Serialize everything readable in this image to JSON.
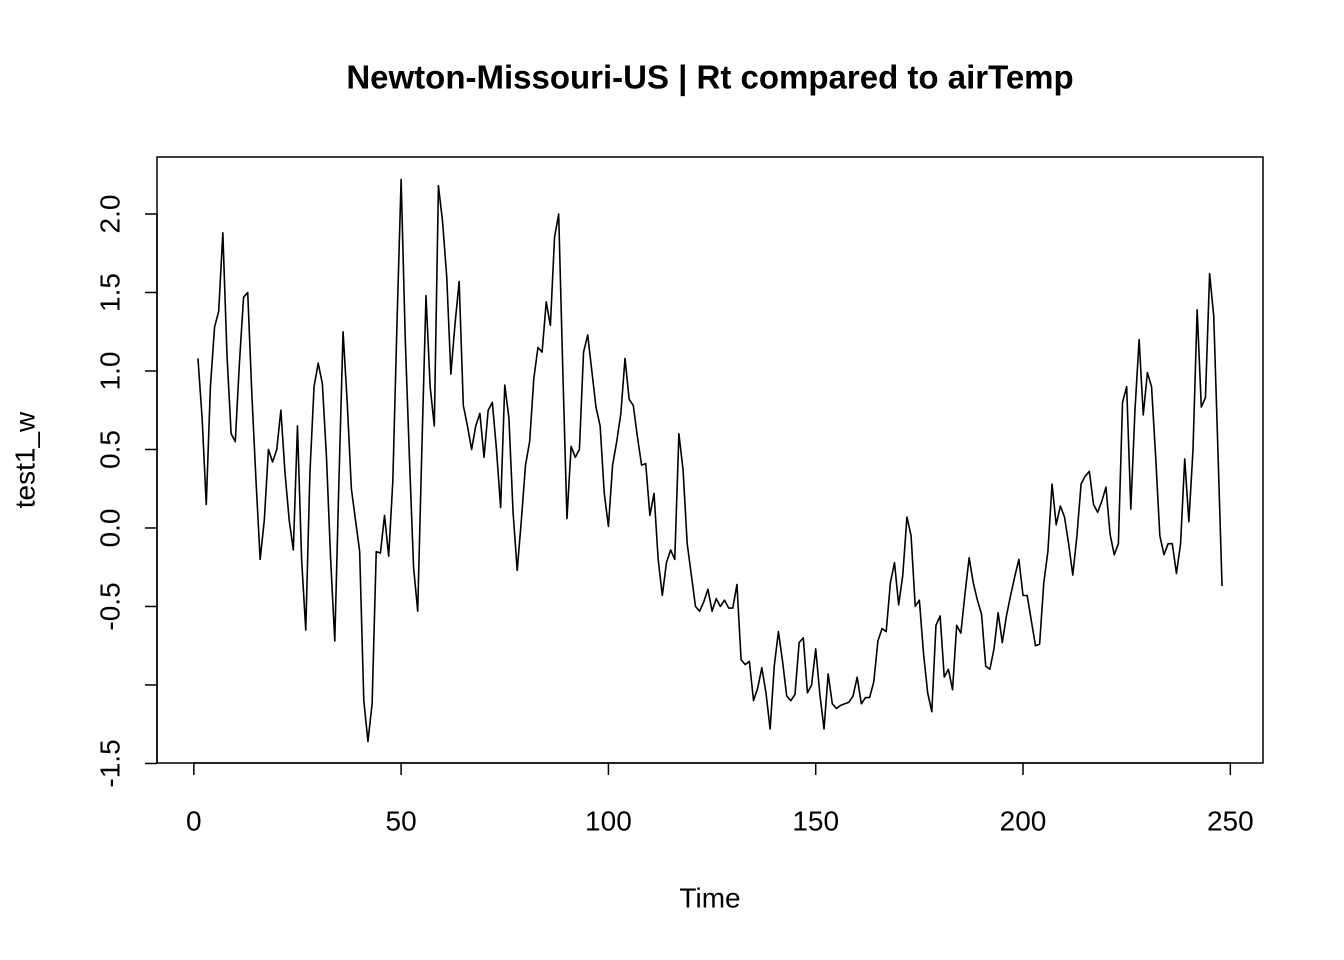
{
  "chart_data": {
    "type": "line",
    "title": "Newton-Missouri-US | Rt compared to airTemp",
    "x_label": "Time",
    "y_label": "test1_w",
    "xlim": [
      -8.88,
      257.88
    ],
    "ylim": [
      -1.497,
      2.363
    ],
    "xticks": [
      0,
      50,
      100,
      150,
      200,
      250
    ],
    "yticks": [
      {
        "value": -1.5,
        "label": "-1.5"
      },
      {
        "value": -1,
        "label": null
      },
      {
        "value": -0.5,
        "label": "-0.5"
      },
      {
        "value": 0,
        "label": "0.0"
      },
      {
        "value": 0.5,
        "label": "0.5"
      },
      {
        "value": 1,
        "label": "1.0"
      },
      {
        "value": 1.5,
        "label": "1.5"
      },
      {
        "value": 2,
        "label": "2.0"
      }
    ],
    "grid": false,
    "series": [
      {
        "color": "#000000",
        "x": [
          1,
          2,
          3,
          4,
          5,
          6,
          7,
          8,
          9,
          10,
          11,
          12,
          13,
          14,
          15,
          16,
          17,
          18,
          19,
          20,
          21,
          22,
          23,
          24,
          25,
          26,
          27,
          28,
          29,
          30,
          31,
          32,
          33,
          34,
          35,
          36,
          37,
          38,
          39,
          40,
          41,
          42,
          43,
          44,
          45,
          46,
          47,
          48,
          49,
          50,
          51,
          52,
          53,
          54,
          55,
          56,
          57,
          58,
          59,
          60,
          61,
          62,
          63,
          64,
          65,
          66,
          67,
          68,
          69,
          70,
          71,
          72,
          73,
          74,
          75,
          76,
          77,
          78,
          79,
          80,
          81,
          82,
          83,
          84,
          85,
          86,
          87,
          88,
          89,
          90,
          91,
          92,
          93,
          94,
          95,
          96,
          97,
          98,
          99,
          100,
          101,
          102,
          103,
          104,
          105,
          106,
          107,
          108,
          109,
          110,
          111,
          112,
          113,
          114,
          115,
          116,
          117,
          118,
          119,
          120,
          121,
          122,
          123,
          124,
          125,
          126,
          127,
          128,
          129,
          130,
          131,
          132,
          133,
          134,
          135,
          136,
          137,
          138,
          139,
          140,
          141,
          142,
          143,
          144,
          145,
          146,
          147,
          148,
          149,
          150,
          151,
          152,
          153,
          154,
          155,
          156,
          157,
          158,
          159,
          160,
          161,
          162,
          163,
          164,
          165,
          166,
          167,
          168,
          169,
          170,
          171,
          172,
          173,
          174,
          175,
          176,
          177,
          178,
          179,
          180,
          181,
          182,
          183,
          184,
          185,
          186,
          187,
          188,
          189,
          190,
          191,
          192,
          193,
          194,
          195,
          196,
          197,
          198,
          199,
          200,
          201,
          202,
          203,
          204,
          205,
          206,
          207,
          208,
          209,
          210,
          211,
          212,
          213,
          214,
          215,
          216,
          217,
          218,
          219,
          220,
          221,
          222,
          223,
          224,
          225,
          226,
          227,
          228,
          229,
          230,
          231,
          232,
          233,
          234,
          235,
          236,
          237,
          238,
          239,
          240,
          241,
          242,
          243,
          244,
          245,
          246,
          247,
          248
        ],
        "values": [
          1.08,
          0.7,
          0.15,
          0.9,
          1.28,
          1.38,
          1.88,
          1.1,
          0.6,
          0.55,
          1.05,
          1.47,
          1.5,
          0.85,
          0.3,
          -0.2,
          0.05,
          0.5,
          0.42,
          0.5,
          0.75,
          0.35,
          0.05,
          -0.14,
          0.65,
          -0.2,
          -0.65,
          0.35,
          0.9,
          1.05,
          0.92,
          0.45,
          -0.2,
          -0.72,
          0.3,
          1.25,
          0.8,
          0.25,
          0.05,
          -0.15,
          -1.1,
          -1.36,
          -1.12,
          -0.15,
          -0.16,
          0.08,
          -0.18,
          0.3,
          1.3,
          2.22,
          1.2,
          0.45,
          -0.25,
          -0.53,
          0.5,
          1.48,
          0.9,
          0.65,
          2.18,
          1.95,
          1.6,
          0.98,
          1.3,
          1.57,
          0.78,
          0.65,
          0.5,
          0.65,
          0.73,
          0.45,
          0.75,
          0.8,
          0.5,
          0.13,
          0.91,
          0.7,
          0.1,
          -0.27,
          0.05,
          0.4,
          0.55,
          0.95,
          1.15,
          1.12,
          1.44,
          1.29,
          1.85,
          2.0,
          1.0,
          0.06,
          0.52,
          0.45,
          0.5,
          1.12,
          1.23,
          1.0,
          0.77,
          0.65,
          0.22,
          0.01,
          0.4,
          0.55,
          0.73,
          1.08,
          0.82,
          0.78,
          0.58,
          0.4,
          0.41,
          0.08,
          0.22,
          -0.2,
          -0.43,
          -0.22,
          -0.14,
          -0.2,
          0.6,
          0.37,
          -0.1,
          -0.3,
          -0.5,
          -0.53,
          -0.47,
          -0.39,
          -0.53,
          -0.45,
          -0.5,
          -0.46,
          -0.51,
          -0.51,
          -0.36,
          -0.84,
          -0.87,
          -0.85,
          -1.1,
          -1.02,
          -0.89,
          -1.05,
          -1.28,
          -0.88,
          -0.66,
          -0.85,
          -1.07,
          -1.1,
          -1.06,
          -0.73,
          -0.7,
          -1.05,
          -1.0,
          -0.77,
          -1.06,
          -1.28,
          -0.93,
          -1.12,
          -1.15,
          -1.13,
          -1.12,
          -1.11,
          -1.07,
          -0.95,
          -1.12,
          -1.08,
          -1.08,
          -0.98,
          -0.72,
          -0.64,
          -0.66,
          -0.35,
          -0.22,
          -0.49,
          -0.3,
          0.07,
          -0.05,
          -0.5,
          -0.46,
          -0.8,
          -1.05,
          -1.17,
          -0.62,
          -0.56,
          -0.95,
          -0.9,
          -1.03,
          -0.62,
          -0.67,
          -0.42,
          -0.19,
          -0.35,
          -0.46,
          -0.55,
          -0.88,
          -0.9,
          -0.77,
          -0.54,
          -0.73,
          -0.56,
          -0.43,
          -0.31,
          -0.2,
          -0.43,
          -0.43,
          -0.59,
          -0.75,
          -0.74,
          -0.35,
          -0.15,
          0.28,
          0.02,
          0.14,
          0.07,
          -0.1,
          -0.3,
          -0.05,
          0.28,
          0.33,
          0.36,
          0.15,
          0.1,
          0.17,
          0.26,
          -0.04,
          -0.17,
          -0.1,
          0.8,
          0.9,
          0.12,
          0.75,
          1.2,
          0.72,
          0.99,
          0.9,
          0.45,
          -0.05,
          -0.17,
          -0.1,
          -0.1,
          -0.29,
          -0.1,
          0.44,
          0.04,
          0.5,
          1.39,
          0.77,
          0.83,
          1.62,
          1.35,
          0.5,
          -0.37
        ]
      }
    ]
  }
}
